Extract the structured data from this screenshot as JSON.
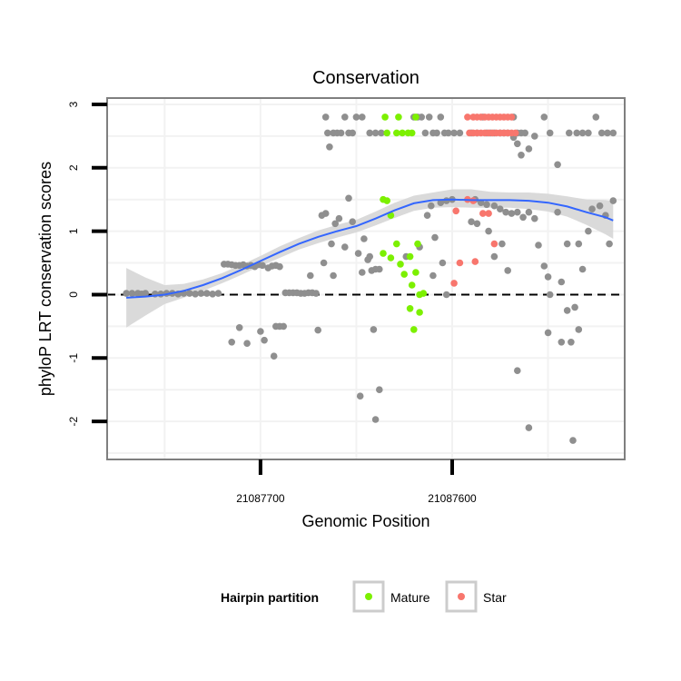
{
  "chart_data": {
    "type": "scatter",
    "title": "Conservation",
    "xlabel": "Genomic Position",
    "ylabel": "phyloP LRT conservation scores",
    "x_reversed": true,
    "xlim": [
      21087780,
      21087510
    ],
    "ylim": [
      -2.6,
      3.1
    ],
    "x_ticks": [
      21087700,
      21087600
    ],
    "x_tick_labels": [
      "21087700",
      "21087600"
    ],
    "y_ticks": [
      -2,
      -1,
      0,
      1,
      2,
      3
    ],
    "y_tick_labels": [
      "-2",
      "-1",
      "0",
      "1",
      "2",
      "3"
    ],
    "grid": true,
    "reference_line": {
      "y": 0,
      "style": "dashed"
    },
    "legend": {
      "title": "Hairpin partition",
      "position": "bottom",
      "entries": [
        {
          "label": "Mature",
          "color": "#7cf000"
        },
        {
          "label": "Star",
          "color": "#f8766d"
        }
      ]
    },
    "colors": {
      "other": "#8f8f8f",
      "smooth": "#3366ff",
      "band": "#d6d6d6",
      "panel_border": "#7f7f7f"
    },
    "series": [
      {
        "group": "other",
        "points": [
          [
            21087770,
            0.02
          ],
          [
            21087767,
            0.02
          ],
          [
            21087764,
            0.02
          ],
          [
            21087762,
            0.01
          ],
          [
            21087760,
            0.02
          ],
          [
            21087755,
            0.01
          ],
          [
            21087752,
            0.01
          ],
          [
            21087749,
            0.02
          ],
          [
            21087746,
            0.02
          ],
          [
            21087743,
            0.01
          ],
          [
            21087740,
            0.02
          ],
          [
            21087737,
            0.02
          ],
          [
            21087734,
            0.01
          ],
          [
            21087731,
            0.02
          ],
          [
            21087728,
            0.02
          ],
          [
            21087725,
            0.01
          ],
          [
            21087722,
            0.02
          ],
          [
            21087719,
            0.48
          ],
          [
            21087717,
            0.48
          ],
          [
            21087715,
            0.47
          ],
          [
            21087713,
            0.46
          ],
          [
            21087711,
            0.46
          ],
          [
            21087709,
            0.47
          ],
          [
            21087707,
            0.45
          ],
          [
            21087705,
            0.46
          ],
          [
            21087703,
            0.44
          ],
          [
            21087701,
            0.47
          ],
          [
            21087699,
            0.46
          ],
          [
            21087696,
            0.42
          ],
          [
            21087694,
            0.45
          ],
          [
            21087692,
            0.46
          ],
          [
            21087690,
            0.44
          ],
          [
            21087715,
            -0.75
          ],
          [
            21087711,
            -0.52
          ],
          [
            21087707,
            -0.77
          ],
          [
            21087700,
            -0.58
          ],
          [
            21087698,
            -0.72
          ],
          [
            21087693,
            -0.97
          ],
          [
            21087692,
            -0.5
          ],
          [
            21087690,
            -0.5
          ],
          [
            21087688,
            -0.5
          ],
          [
            21087687,
            0.03
          ],
          [
            21087685,
            0.03
          ],
          [
            21087683,
            0.03
          ],
          [
            21087681,
            0.03
          ],
          [
            21087679,
            0.02
          ],
          [
            21087677,
            0.02
          ],
          [
            21087675,
            0.03
          ],
          [
            21087673,
            0.03
          ],
          [
            21087671,
            0.02
          ],
          [
            21087670,
            -0.56
          ],
          [
            21087667,
            0.5
          ],
          [
            21087674,
            0.3
          ],
          [
            21087662,
            0.3
          ],
          [
            21087668,
            1.25
          ],
          [
            21087666,
            1.28
          ],
          [
            21087663,
            0.8
          ],
          [
            21087661,
            1.12
          ],
          [
            21087659,
            1.2
          ],
          [
            21087656,
            0.75
          ],
          [
            21087654,
            1.52
          ],
          [
            21087652,
            1.15
          ],
          [
            21087649,
            0.65
          ],
          [
            21087646,
            0.88
          ],
          [
            21087647,
            0.35
          ],
          [
            21087644,
            0.55
          ],
          [
            21087643,
            0.6
          ],
          [
            21087642,
            0.38
          ],
          [
            21087640,
            0.4
          ],
          [
            21087638,
            0.4
          ],
          [
            21087648,
            -1.6
          ],
          [
            21087641,
            -0.55
          ],
          [
            21087640,
            -1.97
          ],
          [
            21087638,
            -1.5
          ],
          [
            21087666,
            2.8
          ],
          [
            21087665,
            2.55
          ],
          [
            21087664,
            2.33
          ],
          [
            21087662,
            2.55
          ],
          [
            21087660,
            2.55
          ],
          [
            21087658,
            2.55
          ],
          [
            21087656,
            2.8
          ],
          [
            21087654,
            2.55
          ],
          [
            21087652,
            2.55
          ],
          [
            21087650,
            2.8
          ],
          [
            21087647,
            2.8
          ],
          [
            21087643,
            2.55
          ],
          [
            21087640,
            2.55
          ],
          [
            21087637,
            2.55
          ],
          [
            21087620,
            2.8
          ],
          [
            21087618,
            2.8
          ],
          [
            21087616,
            2.8
          ],
          [
            21087614,
            2.55
          ],
          [
            21087612,
            2.8
          ],
          [
            21087610,
            2.55
          ],
          [
            21087608,
            2.55
          ],
          [
            21087606,
            2.8
          ],
          [
            21087604,
            2.55
          ],
          [
            21087602,
            2.55
          ],
          [
            21087599,
            2.55
          ],
          [
            21087596,
            2.55
          ],
          [
            21087624,
            0.6
          ],
          [
            21087617,
            0.75
          ],
          [
            21087613,
            1.25
          ],
          [
            21087611,
            1.4
          ],
          [
            21087609,
            0.9
          ],
          [
            21087606,
            1.45
          ],
          [
            21087603,
            1.48
          ],
          [
            21087600,
            1.5
          ],
          [
            21087605,
            0.5
          ],
          [
            21087610,
            0.3
          ],
          [
            21087603,
            0.0
          ],
          [
            21087590,
            2.55
          ],
          [
            21087587,
            2.55
          ],
          [
            21087584,
            2.8
          ],
          [
            21087582,
            2.55
          ],
          [
            21087580,
            2.55
          ],
          [
            21087578,
            2.55
          ],
          [
            21087575,
            2.55
          ],
          [
            21087573,
            2.55
          ],
          [
            21087571,
            2.55
          ],
          [
            21087568,
            2.8
          ],
          [
            21087566,
            2.55
          ],
          [
            21087564,
            2.55
          ],
          [
            21087562,
            2.55
          ],
          [
            21087566,
            2.38
          ],
          [
            21087568,
            2.48
          ],
          [
            21087564,
            2.2
          ],
          [
            21087560,
            2.3
          ],
          [
            21087557,
            2.5
          ],
          [
            21087588,
            1.5
          ],
          [
            21087585,
            1.45
          ],
          [
            21087582,
            1.42
          ],
          [
            21087578,
            1.4
          ],
          [
            21087575,
            1.35
          ],
          [
            21087572,
            1.3
          ],
          [
            21087569,
            1.28
          ],
          [
            21087566,
            1.3
          ],
          [
            21087563,
            1.22
          ],
          [
            21087560,
            1.3
          ],
          [
            21087557,
            1.2
          ],
          [
            21087590,
            1.15
          ],
          [
            21087587,
            1.12
          ],
          [
            21087581,
            1.0
          ],
          [
            21087578,
            0.6
          ],
          [
            21087574,
            0.8
          ],
          [
            21087571,
            0.38
          ],
          [
            21087566,
            -1.2
          ],
          [
            21087560,
            -2.1
          ],
          [
            21087555,
            0.78
          ],
          [
            21087552,
            0.45
          ],
          [
            21087550,
            0.28
          ],
          [
            21087549,
            0.0
          ],
          [
            21087545,
            1.3
          ],
          [
            21087543,
            0.2
          ],
          [
            21087540,
            0.8
          ],
          [
            21087545,
            2.05
          ],
          [
            21087552,
            2.8
          ],
          [
            21087549,
            2.55
          ],
          [
            21087543,
            -0.75
          ],
          [
            21087550,
            -0.6
          ],
          [
            21087538,
            -0.75
          ],
          [
            21087540,
            -0.25
          ],
          [
            21087536,
            -0.2
          ],
          [
            21087534,
            -0.55
          ],
          [
            21087537,
            -2.3
          ],
          [
            21087534,
            0.8
          ],
          [
            21087532,
            0.4
          ],
          [
            21087529,
            1.0
          ],
          [
            21087527,
            1.35
          ],
          [
            21087523,
            1.4
          ],
          [
            21087520,
            1.25
          ],
          [
            21087516,
            1.48
          ],
          [
            21087518,
            0.8
          ],
          [
            21087539,
            2.55
          ],
          [
            21087535,
            2.55
          ],
          [
            21087532,
            2.55
          ],
          [
            21087529,
            2.55
          ],
          [
            21087525,
            2.8
          ],
          [
            21087522,
            2.55
          ],
          [
            21087519,
            2.55
          ],
          [
            21087516,
            2.55
          ]
        ]
      },
      {
        "group": "Mature",
        "points": [
          [
            21087635,
            2.8
          ],
          [
            21087634,
            2.55
          ],
          [
            21087629,
            2.55
          ],
          [
            21087628,
            2.8
          ],
          [
            21087626,
            2.55
          ],
          [
            21087623,
            2.55
          ],
          [
            21087621,
            2.55
          ],
          [
            21087619,
            2.8
          ],
          [
            21087636,
            1.5
          ],
          [
            21087634,
            1.48
          ],
          [
            21087632,
            1.25
          ],
          [
            21087636,
            0.65
          ],
          [
            21087632,
            0.58
          ],
          [
            21087629,
            0.8
          ],
          [
            21087627,
            0.48
          ],
          [
            21087625,
            0.32
          ],
          [
            21087622,
            0.6
          ],
          [
            21087621,
            0.15
          ],
          [
            21087619,
            0.35
          ],
          [
            21087617,
            0.0
          ],
          [
            21087615,
            0.02
          ],
          [
            21087618,
            0.8
          ],
          [
            21087622,
            -0.22
          ],
          [
            21087617,
            -0.28
          ],
          [
            21087620,
            -0.55
          ]
        ]
      },
      {
        "group": "Star",
        "points": [
          [
            21087592,
            2.8
          ],
          [
            21087589,
            2.8
          ],
          [
            21087587,
            2.8
          ],
          [
            21087585,
            2.8
          ],
          [
            21087583,
            2.8
          ],
          [
            21087581,
            2.8
          ],
          [
            21087579,
            2.8
          ],
          [
            21087577,
            2.8
          ],
          [
            21087575,
            2.8
          ],
          [
            21087573,
            2.8
          ],
          [
            21087571,
            2.8
          ],
          [
            21087569,
            2.8
          ],
          [
            21087591,
            2.55
          ],
          [
            21087589,
            2.55
          ],
          [
            21087587,
            2.55
          ],
          [
            21087585,
            2.55
          ],
          [
            21087583,
            2.55
          ],
          [
            21087581,
            2.55
          ],
          [
            21087579,
            2.55
          ],
          [
            21087577,
            2.55
          ],
          [
            21087575,
            2.55
          ],
          [
            21087573,
            2.55
          ],
          [
            21087571,
            2.55
          ],
          [
            21087569,
            2.55
          ],
          [
            21087567,
            2.55
          ],
          [
            21087592,
            1.5
          ],
          [
            21087589,
            1.48
          ],
          [
            21087598,
            1.32
          ],
          [
            21087584,
            1.28
          ],
          [
            21087581,
            1.28
          ],
          [
            21087578,
            0.8
          ],
          [
            21087596,
            0.5
          ],
          [
            21087588,
            0.52
          ],
          [
            21087599,
            0.18
          ]
        ]
      }
    ],
    "smooth": [
      [
        21087770,
        -0.05
      ],
      [
        21087760,
        -0.03
      ],
      [
        21087750,
        0.0
      ],
      [
        21087740,
        0.06
      ],
      [
        21087730,
        0.15
      ],
      [
        21087720,
        0.26
      ],
      [
        21087710,
        0.39
      ],
      [
        21087700,
        0.53
      ],
      [
        21087690,
        0.67
      ],
      [
        21087680,
        0.8
      ],
      [
        21087670,
        0.91
      ],
      [
        21087660,
        1.0
      ],
      [
        21087650,
        1.08
      ],
      [
        21087640,
        1.2
      ],
      [
        21087630,
        1.33
      ],
      [
        21087620,
        1.44
      ],
      [
        21087610,
        1.49
      ],
      [
        21087600,
        1.5
      ],
      [
        21087590,
        1.49
      ],
      [
        21087580,
        1.49
      ],
      [
        21087570,
        1.49
      ],
      [
        21087560,
        1.48
      ],
      [
        21087550,
        1.45
      ],
      [
        21087540,
        1.39
      ],
      [
        21087530,
        1.3
      ],
      [
        21087520,
        1.22
      ],
      [
        21087516,
        1.17
      ]
    ],
    "smooth_band": [
      [
        21087770,
        -0.52,
        0.42
      ],
      [
        21087760,
        -0.33,
        0.27
      ],
      [
        21087750,
        -0.15,
        0.15
      ],
      [
        21087740,
        -0.05,
        0.17
      ],
      [
        21087730,
        0.06,
        0.24
      ],
      [
        21087720,
        0.18,
        0.34
      ],
      [
        21087710,
        0.31,
        0.47
      ],
      [
        21087700,
        0.45,
        0.61
      ],
      [
        21087690,
        0.58,
        0.76
      ],
      [
        21087680,
        0.71,
        0.89
      ],
      [
        21087670,
        0.81,
        1.01
      ],
      [
        21087660,
        0.9,
        1.1
      ],
      [
        21087650,
        0.98,
        1.18
      ],
      [
        21087640,
        1.09,
        1.31
      ],
      [
        21087630,
        1.21,
        1.45
      ],
      [
        21087620,
        1.32,
        1.56
      ],
      [
        21087610,
        1.37,
        1.61
      ],
      [
        21087600,
        1.38,
        1.66
      ],
      [
        21087590,
        1.37,
        1.66
      ],
      [
        21087580,
        1.37,
        1.62
      ],
      [
        21087570,
        1.37,
        1.61
      ],
      [
        21087560,
        1.35,
        1.61
      ],
      [
        21087550,
        1.31,
        1.59
      ],
      [
        21087540,
        1.23,
        1.55
      ],
      [
        21087530,
        1.1,
        1.5
      ],
      [
        21087520,
        0.95,
        1.49
      ],
      [
        21087516,
        0.88,
        1.47
      ]
    ]
  }
}
